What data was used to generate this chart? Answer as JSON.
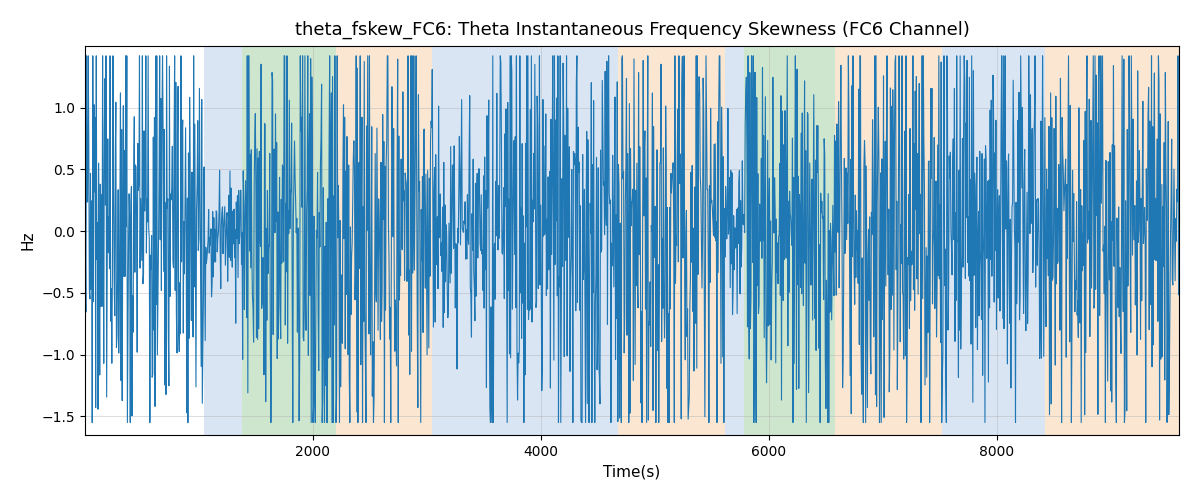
{
  "title": "theta_fskew_FC6: Theta Instantaneous Frequency Skewness (FC6 Channel)",
  "xlabel": "Time(s)",
  "ylabel": "Hz",
  "xlim": [
    0,
    9600
  ],
  "ylim": [
    -1.65,
    1.5
  ],
  "yticks": [
    -1.5,
    -1.0,
    -0.5,
    0.0,
    0.5,
    1.0
  ],
  "xticks": [
    2000,
    4000,
    6000,
    8000
  ],
  "line_color": "#1f77b4",
  "line_width": 0.8,
  "background_color": "#ffffff",
  "grid_color": "#b0b0b0",
  "grid_alpha": 0.6,
  "grid_linewidth": 0.5,
  "bands": [
    {
      "start": 1050,
      "end": 1380,
      "color": "#aec6e8",
      "alpha": 0.45
    },
    {
      "start": 1380,
      "end": 2200,
      "color": "#90c990",
      "alpha": 0.45
    },
    {
      "start": 2200,
      "end": 3050,
      "color": "#f5c89a",
      "alpha": 0.45
    },
    {
      "start": 3050,
      "end": 4680,
      "color": "#aec6e8",
      "alpha": 0.45
    },
    {
      "start": 4680,
      "end": 5620,
      "color": "#f5c89a",
      "alpha": 0.45
    },
    {
      "start": 5620,
      "end": 5780,
      "color": "#aec6e8",
      "alpha": 0.45
    },
    {
      "start": 5780,
      "end": 6580,
      "color": "#90c990",
      "alpha": 0.45
    },
    {
      "start": 6580,
      "end": 7520,
      "color": "#f5c89a",
      "alpha": 0.45
    },
    {
      "start": 7520,
      "end": 8420,
      "color": "#aec6e8",
      "alpha": 0.45
    },
    {
      "start": 8420,
      "end": 9600,
      "color": "#f5c89a",
      "alpha": 0.45
    }
  ],
  "seed": 42,
  "n_points": 1900,
  "title_fontsize": 13,
  "label_fontsize": 11,
  "figsize": [
    12.0,
    5.0
  ],
  "dpi": 100,
  "amplitude_sections": [
    {
      "start": 0,
      "end": 1050,
      "amp": 1.1
    },
    {
      "start": 1050,
      "end": 1380,
      "amp": 0.25
    },
    {
      "start": 1380,
      "end": 2200,
      "amp": 1.15
    },
    {
      "start": 2200,
      "end": 3050,
      "amp": 1.05
    },
    {
      "start": 3050,
      "end": 3500,
      "amp": 0.45
    },
    {
      "start": 3500,
      "end": 4680,
      "amp": 1.1
    },
    {
      "start": 4680,
      "end": 5620,
      "amp": 1.05
    },
    {
      "start": 5620,
      "end": 5780,
      "amp": 0.45
    },
    {
      "start": 5780,
      "end": 6580,
      "amp": 0.85
    },
    {
      "start": 6580,
      "end": 7520,
      "amp": 1.05
    },
    {
      "start": 7520,
      "end": 8420,
      "amp": 0.85
    },
    {
      "start": 8420,
      "end": 9600,
      "amp": 1.0
    }
  ]
}
